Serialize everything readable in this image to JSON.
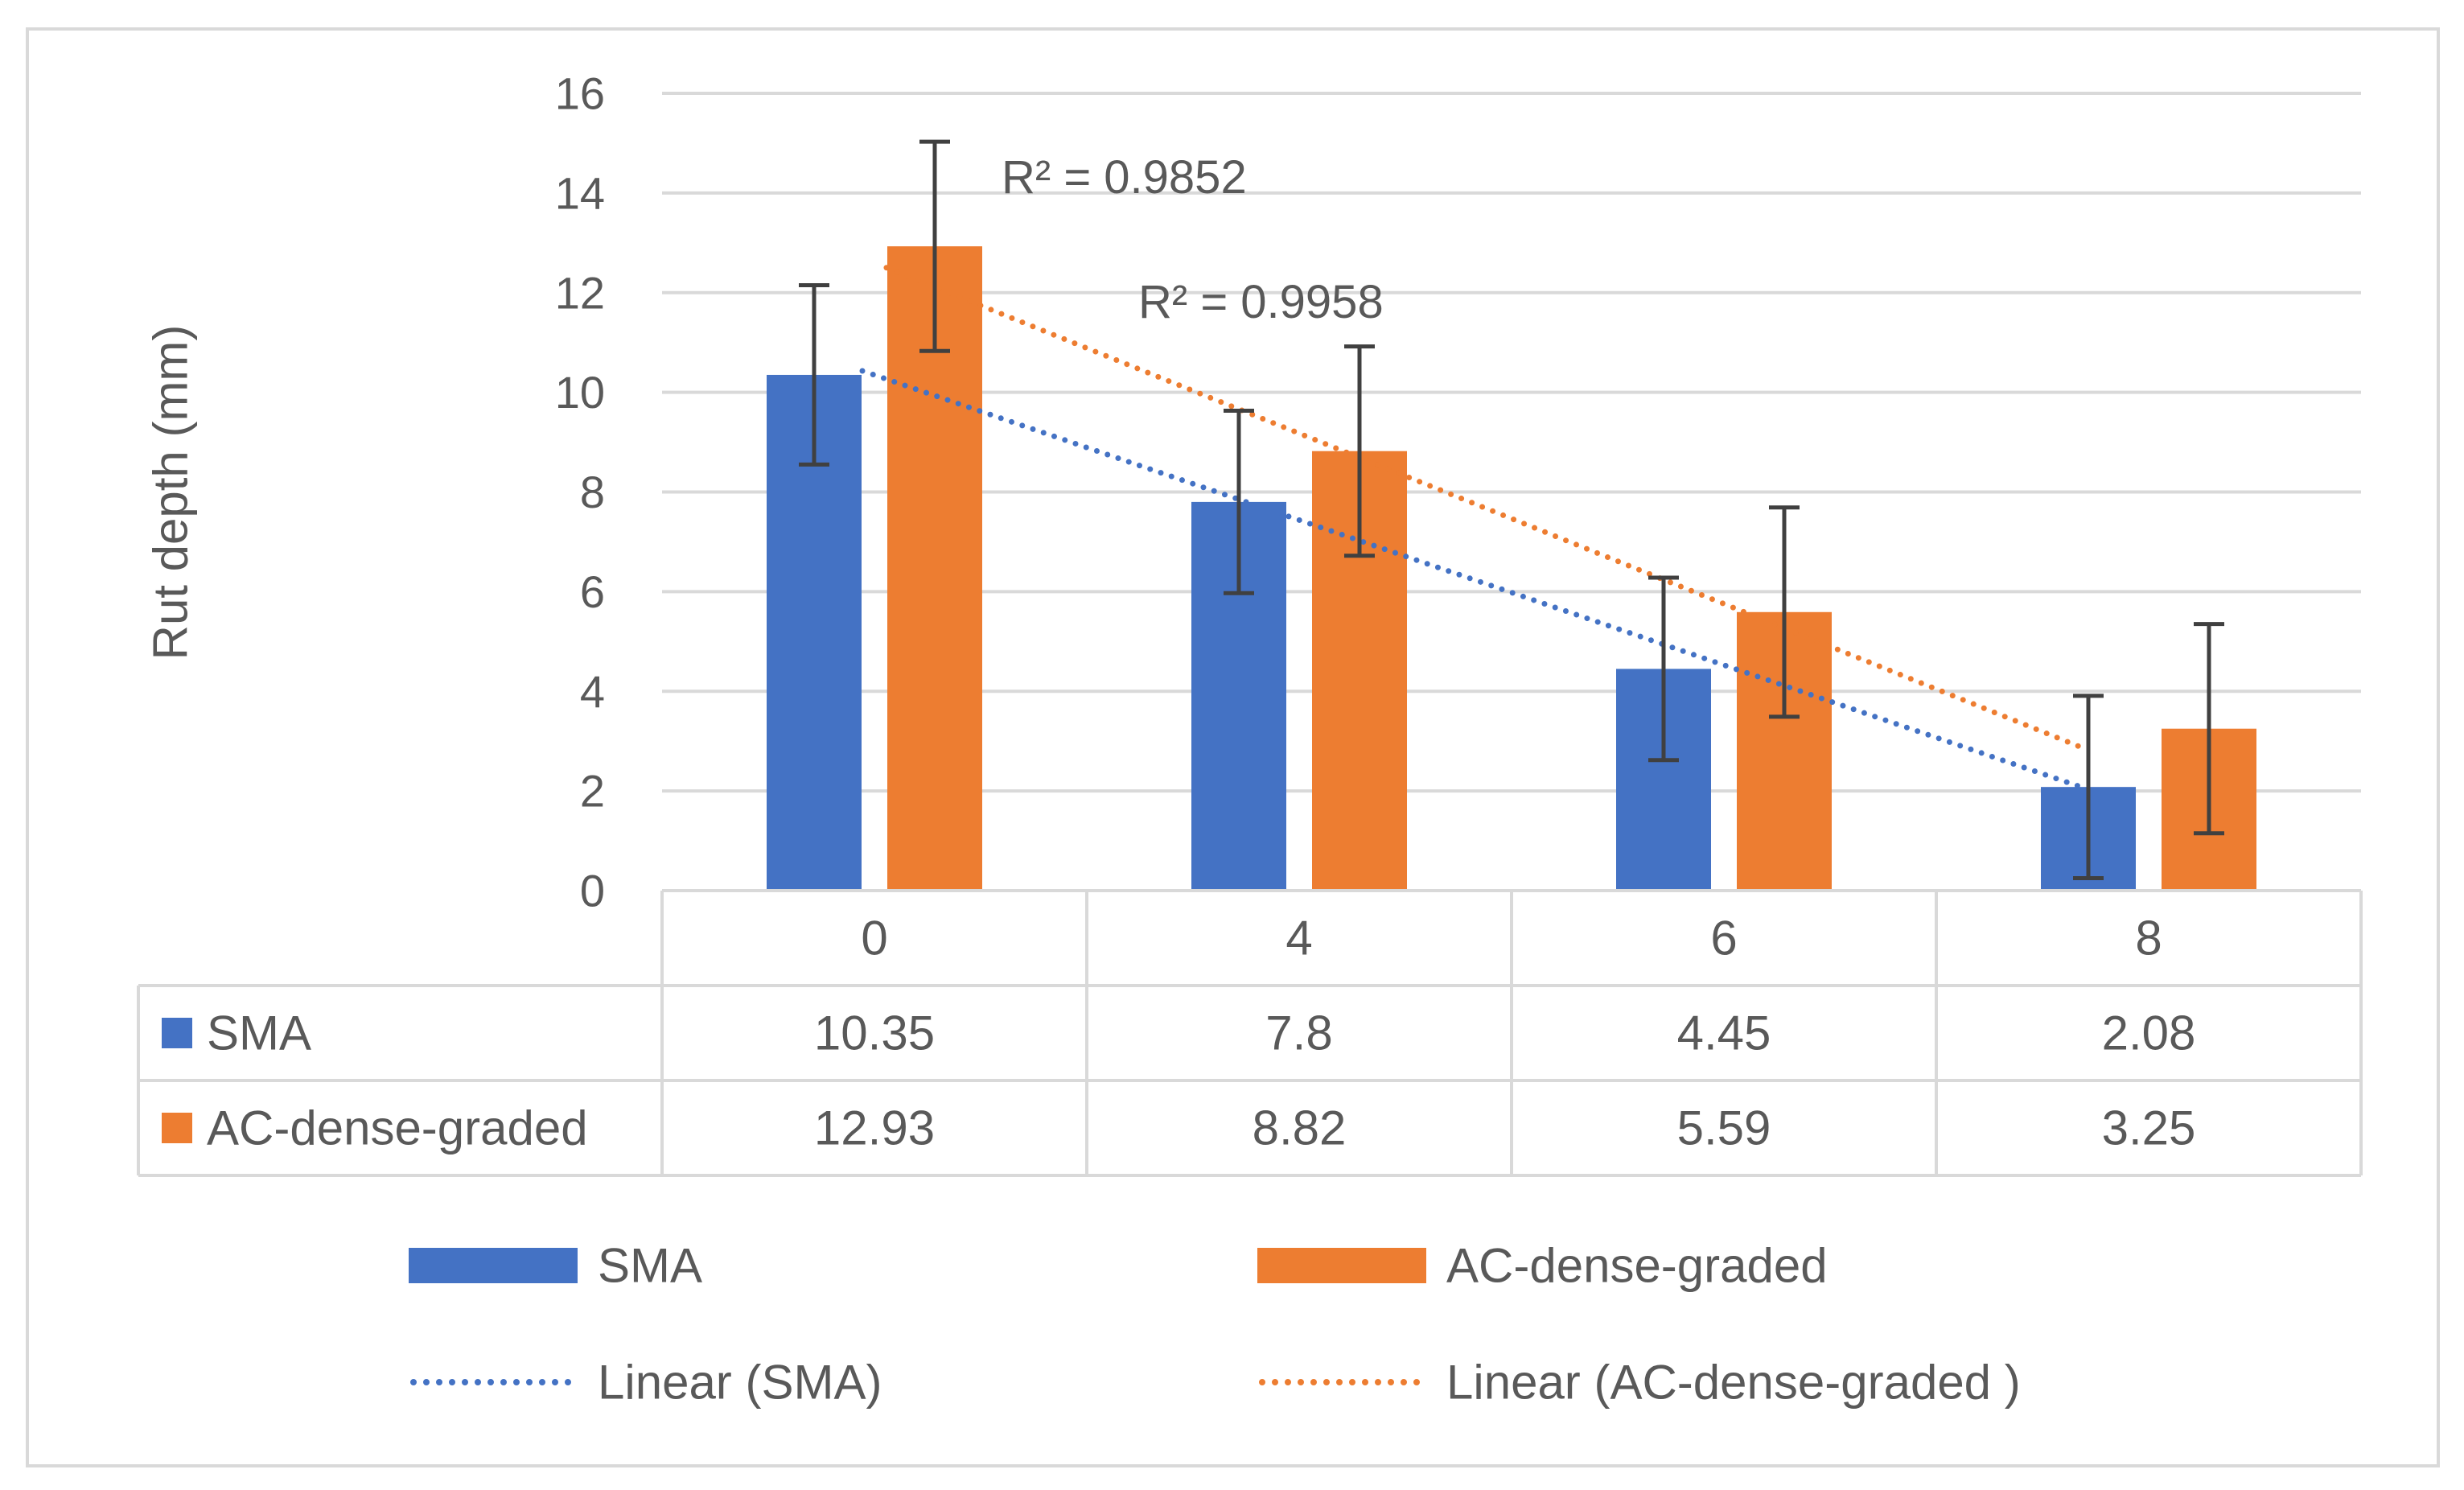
{
  "chart_data": {
    "type": "bar",
    "title": "",
    "xlabel": "",
    "ylabel": "Rut depth (mm)",
    "ylim": [
      0,
      16
    ],
    "yticks": [
      "0",
      "2",
      "4",
      "6",
      "8",
      "10",
      "12",
      "14",
      "16"
    ],
    "categories": [
      "0",
      "4",
      "6",
      "8"
    ],
    "grid": true,
    "data_table": true,
    "legend_position": "bottom",
    "series": [
      {
        "name": "SMA",
        "color": "#4472C4",
        "values": [
          10.35,
          7.8,
          4.45,
          2.08
        ],
        "value_labels": [
          "10.35",
          "7.8",
          "4.45",
          "2.08"
        ],
        "error_low": [
          8.55,
          5.97,
          2.62,
          0.25
        ],
        "error_high": [
          12.15,
          9.63,
          6.28,
          3.91
        ]
      },
      {
        "name": "AC-dense-graded",
        "color": "#ED7D31",
        "values": [
          12.93,
          8.82,
          5.59,
          3.25
        ],
        "value_labels": [
          "12.93",
          "8.82",
          "5.59",
          "3.25"
        ],
        "error_low": [
          10.83,
          6.72,
          3.49,
          1.15
        ],
        "error_high": [
          15.03,
          10.92,
          7.69,
          5.35
        ]
      }
    ],
    "trendlines": [
      {
        "name": "Linear (SMA)",
        "series": "SMA",
        "color": "#4472C4",
        "style": "dotted",
        "start": 10.43,
        "end": 2.03,
        "r2": "R² = 0.9958"
      },
      {
        "name": "Linear (AC-dense-graded )",
        "series": "AC-dense-graded",
        "color": "#ED7D31",
        "style": "dotted",
        "start": 12.5,
        "end": 2.82,
        "r2": "R² = 0.9852"
      }
    ]
  }
}
